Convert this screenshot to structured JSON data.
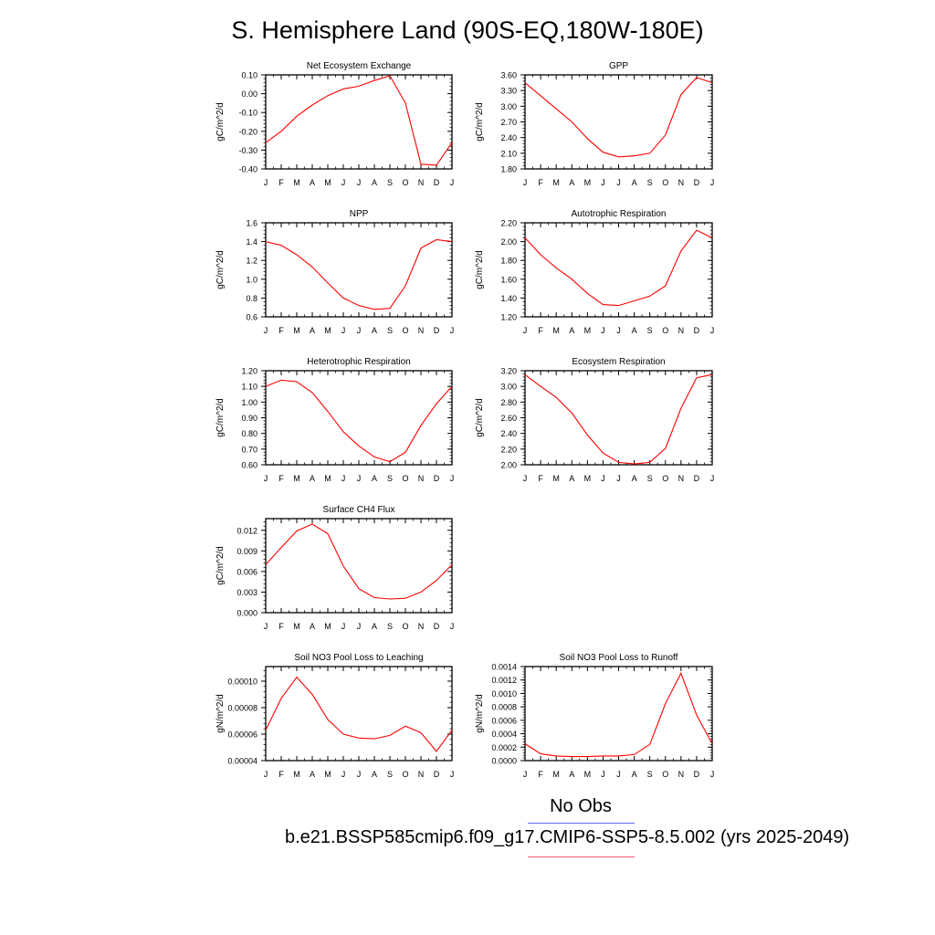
{
  "title": "S. Hemisphere Land (90S-EQ,180W-180E)",
  "colors": {
    "series": "#ff0000",
    "axis": "#000000",
    "obs_legend": "#5b6cf0",
    "run_legend": "#f06070"
  },
  "legend": {
    "obs_label": "No Obs",
    "run_label": "b.e21.BSSP585cmip6.f09_g17.CMIP6-SSP5-8.5.002 (yrs 2025-2049)"
  },
  "chart_data": [
    {
      "type": "line",
      "title": "Net Ecosystem Exchange",
      "ylabel": "gC/m^2/d",
      "categories": [
        "J",
        "F",
        "M",
        "A",
        "M",
        "J",
        "J",
        "A",
        "S",
        "O",
        "N",
        "D",
        "J"
      ],
      "ylim": [
        -0.4,
        0.1
      ],
      "yticks": [
        "0.10",
        "0.00",
        "-0.10",
        "-0.20",
        "-0.30",
        "-0.40"
      ],
      "ytick_values": [
        0.1,
        0.0,
        -0.1,
        -0.2,
        -0.3,
        -0.4
      ],
      "values": [
        -0.26,
        -0.2,
        -0.12,
        -0.06,
        -0.01,
        0.025,
        0.04,
        0.07,
        0.095,
        -0.05,
        -0.375,
        -0.38,
        -0.26
      ]
    },
    {
      "type": "line",
      "title": "GPP",
      "ylabel": "gC/m^2/d",
      "categories": [
        "J",
        "F",
        "M",
        "A",
        "M",
        "J",
        "J",
        "A",
        "S",
        "O",
        "N",
        "D",
        "J"
      ],
      "ylim": [
        1.8,
        3.6
      ],
      "yticks": [
        "3.60",
        "3.30",
        "3.00",
        "2.70",
        "2.40",
        "2.10",
        "1.80"
      ],
      "ytick_values": [
        3.6,
        3.3,
        3.0,
        2.7,
        2.4,
        2.1,
        1.8
      ],
      "values": [
        3.45,
        3.2,
        2.95,
        2.7,
        2.38,
        2.12,
        2.03,
        2.05,
        2.1,
        2.45,
        3.22,
        3.55,
        3.45
      ]
    },
    {
      "type": "line",
      "title": "NPP",
      "ylabel": "gC/m^2/d",
      "categories": [
        "J",
        "F",
        "M",
        "A",
        "M",
        "J",
        "J",
        "A",
        "S",
        "O",
        "N",
        "D",
        "J"
      ],
      "ylim": [
        0.6,
        1.6
      ],
      "yticks": [
        "1.6",
        "1.4",
        "1.2",
        "1.0",
        "0.8",
        "0.6"
      ],
      "ytick_values": [
        1.6,
        1.4,
        1.2,
        1.0,
        0.8,
        0.6
      ],
      "values": [
        1.4,
        1.36,
        1.26,
        1.13,
        0.96,
        0.8,
        0.72,
        0.68,
        0.69,
        0.93,
        1.33,
        1.42,
        1.4
      ]
    },
    {
      "type": "line",
      "title": "Autotrophic Respiration",
      "ylabel": "gC/m^2/d",
      "categories": [
        "J",
        "F",
        "M",
        "A",
        "M",
        "J",
        "J",
        "A",
        "S",
        "O",
        "N",
        "D",
        "J"
      ],
      "ylim": [
        1.2,
        2.2
      ],
      "yticks": [
        "2.20",
        "2.00",
        "1.80",
        "1.60",
        "1.40",
        "1.20"
      ],
      "ytick_values": [
        2.2,
        2.0,
        1.8,
        1.6,
        1.4,
        1.2
      ],
      "values": [
        2.04,
        1.86,
        1.72,
        1.6,
        1.45,
        1.33,
        1.32,
        1.37,
        1.42,
        1.53,
        1.9,
        2.12,
        2.04
      ]
    },
    {
      "type": "line",
      "title": "Heterotrophic Respiration",
      "ylabel": "gC/m^2/d",
      "categories": [
        "J",
        "F",
        "M",
        "A",
        "M",
        "J",
        "J",
        "A",
        "S",
        "O",
        "N",
        "D",
        "J"
      ],
      "ylim": [
        0.6,
        1.2
      ],
      "yticks": [
        "1.20",
        "1.10",
        "1.00",
        "0.90",
        "0.80",
        "0.70",
        "0.60"
      ],
      "ytick_values": [
        1.2,
        1.1,
        1.0,
        0.9,
        0.8,
        0.7,
        0.6
      ],
      "values": [
        1.1,
        1.14,
        1.13,
        1.06,
        0.94,
        0.81,
        0.72,
        0.65,
        0.62,
        0.68,
        0.85,
        0.99,
        1.1
      ]
    },
    {
      "type": "line",
      "title": "Ecosystem Respiration",
      "ylabel": "gC/m^2/d",
      "categories": [
        "J",
        "F",
        "M",
        "A",
        "M",
        "J",
        "J",
        "A",
        "S",
        "O",
        "N",
        "D",
        "J"
      ],
      "ylim": [
        2.0,
        3.2
      ],
      "yticks": [
        "3.20",
        "3.00",
        "2.80",
        "2.60",
        "2.40",
        "2.20",
        "2.00"
      ],
      "ytick_values": [
        3.2,
        3.0,
        2.8,
        2.6,
        2.4,
        2.2,
        2.0
      ],
      "values": [
        3.15,
        3.0,
        2.86,
        2.66,
        2.38,
        2.15,
        2.03,
        2.01,
        2.03,
        2.21,
        2.72,
        3.11,
        3.15
      ]
    },
    {
      "type": "line",
      "title": "Surface CH4 Flux",
      "ylabel": "gC/m^2/d",
      "categories": [
        "J",
        "F",
        "M",
        "A",
        "M",
        "J",
        "J",
        "A",
        "S",
        "O",
        "N",
        "D",
        "J"
      ],
      "ylim": [
        0.0,
        0.0137
      ],
      "yticks": [
        "0.012",
        "0.009",
        "0.006",
        "0.003",
        "0.000"
      ],
      "ytick_values": [
        0.012,
        0.009,
        0.006,
        0.003,
        0.0
      ],
      "values": [
        0.007,
        0.0095,
        0.0119,
        0.0129,
        0.0115,
        0.0068,
        0.0035,
        0.0022,
        0.002,
        0.0021,
        0.003,
        0.0047,
        0.007
      ]
    },
    {
      "type": "line",
      "title": "Soil NO3 Pool Loss to Leaching",
      "ylabel": "gN/m^2/d",
      "categories": [
        "J",
        "F",
        "M",
        "A",
        "M",
        "J",
        "J",
        "A",
        "S",
        "O",
        "N",
        "D",
        "J"
      ],
      "ylim": [
        4e-05,
        0.000111
      ],
      "yticks": [
        "0.00010",
        "0.00008",
        "0.00006",
        "0.00004"
      ],
      "ytick_values": [
        0.0001,
        8e-05,
        6e-05,
        4e-05
      ],
      "values": [
        6.3e-05,
        8.7e-05,
        0.000103,
        9e-05,
        7.1e-05,
        6e-05,
        5.7e-05,
        5.65e-05,
        5.9e-05,
        6.6e-05,
        6.1e-05,
        4.7e-05,
        6.3e-05
      ]
    },
    {
      "type": "line",
      "title": "Soil NO3 Pool Loss to Runoff",
      "ylabel": "gN/m^2/d",
      "categories": [
        "J",
        "F",
        "M",
        "A",
        "M",
        "J",
        "J",
        "A",
        "S",
        "O",
        "N",
        "D",
        "J"
      ],
      "ylim": [
        0.0,
        0.0014
      ],
      "yticks": [
        "0.0014",
        "0.0012",
        "0.0010",
        "0.0008",
        "0.0006",
        "0.0004",
        "0.0002",
        "0.0000"
      ],
      "ytick_values": [
        0.0014,
        0.0012,
        0.001,
        0.0008,
        0.0006,
        0.0004,
        0.0002,
        0.0
      ],
      "values": [
        0.00025,
        0.0001,
        7e-05,
        6e-05,
        6e-05,
        7e-05,
        7e-05,
        9e-05,
        0.00024,
        0.00085,
        0.0013,
        0.00068,
        0.00025
      ]
    }
  ]
}
